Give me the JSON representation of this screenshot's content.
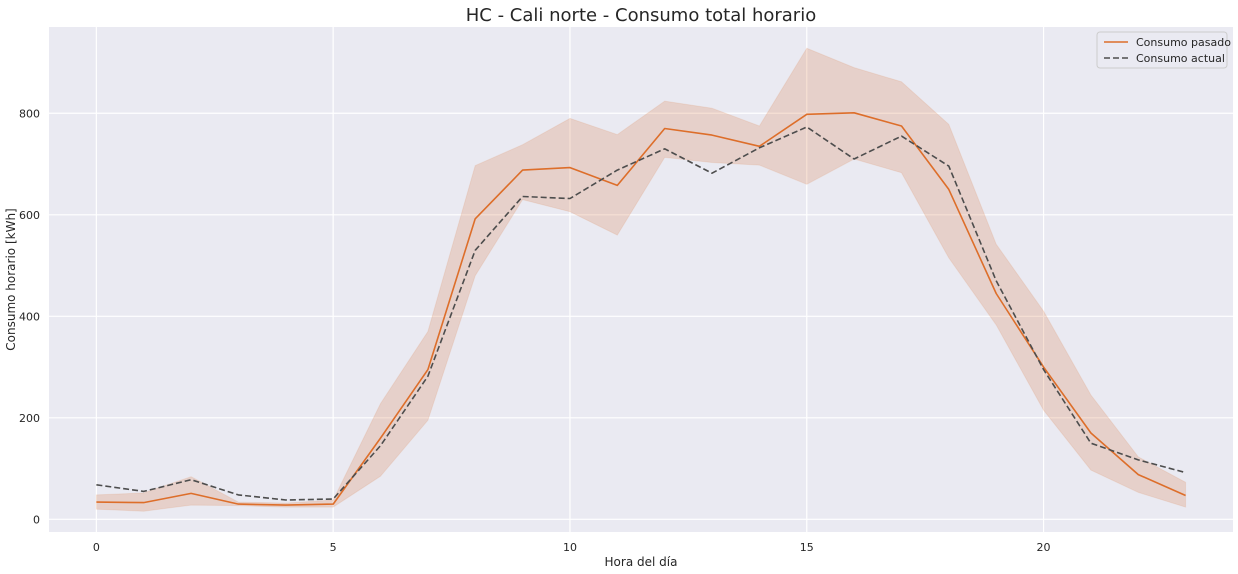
{
  "chart_data": {
    "type": "line",
    "title": "HC - Cali norte - Consumo total horario",
    "xlabel": "Hora del día",
    "ylabel": "Consumo horario [kWh]",
    "x": [
      0,
      1,
      2,
      3,
      4,
      5,
      6,
      7,
      8,
      9,
      10,
      11,
      12,
      13,
      14,
      15,
      16,
      17,
      18,
      19,
      20,
      21,
      22,
      23
    ],
    "xlim": [
      -1,
      24
    ],
    "ylim": [
      -25,
      970
    ],
    "xticks": [
      0,
      5,
      10,
      15,
      20
    ],
    "yticks": [
      0,
      200,
      400,
      600,
      800
    ],
    "grid": true,
    "background": "#eaeaf2",
    "legend_position": "top-right",
    "series": [
      {
        "name": "Consumo pasado",
        "style": "solid",
        "color": "#dd6e2a",
        "values": [
          34,
          33,
          51,
          30,
          28,
          30,
          160,
          295,
          592,
          688,
          693,
          658,
          770,
          757,
          735,
          798,
          801,
          775,
          650,
          445,
          300,
          170,
          88,
          47
        ],
        "band_lower": [
          20,
          16,
          28,
          27,
          24,
          24,
          85,
          195,
          480,
          630,
          606,
          560,
          713,
          703,
          698,
          660,
          710,
          683,
          515,
          383,
          215,
          97,
          53,
          24
        ],
        "band_upper": [
          48,
          52,
          84,
          34,
          32,
          38,
          228,
          370,
          697,
          738,
          790,
          758,
          824,
          810,
          775,
          928,
          890,
          862,
          778,
          542,
          410,
          245,
          123,
          73
        ],
        "band_color": "#dd8452"
      },
      {
        "name": "Consumo actual",
        "style": "dashed",
        "color": "#4d4d4d",
        "values": [
          68,
          55,
          78,
          48,
          38,
          40,
          145,
          282,
          530,
          636,
          632,
          688,
          730,
          682,
          732,
          773,
          710,
          755,
          696,
          470,
          295,
          150,
          117,
          92
        ]
      }
    ]
  }
}
